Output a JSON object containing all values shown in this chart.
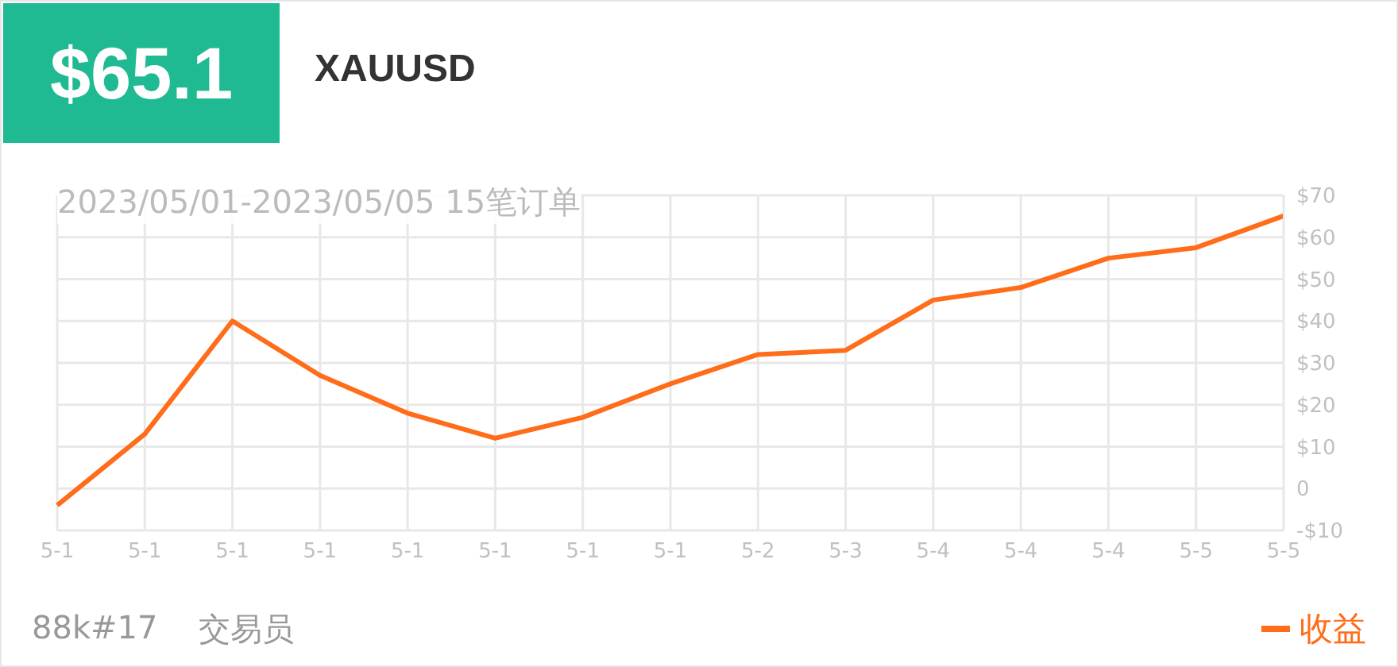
{
  "chart_data": {
    "type": "line",
    "title": "XAUUSD",
    "subtitle": "2023/05/01-2023/05/05 15笔订单",
    "annotations": [
      "$65.1",
      "88k#17",
      "交易员"
    ],
    "categories": [
      "5-1",
      "5-1",
      "5-1",
      "5-1",
      "5-1",
      "5-1",
      "5-1",
      "5-1",
      "5-2",
      "5-3",
      "5-4",
      "5-4",
      "5-4",
      "5-5",
      "5-5"
    ],
    "series": [
      {
        "name": "收益",
        "color": "#ff6d1a",
        "values": [
          -4,
          13,
          40,
          27,
          18,
          12,
          17,
          25,
          32,
          33,
          45,
          48,
          55,
          57.5,
          65.1
        ]
      }
    ],
    "ylim": [
      -10,
      70
    ],
    "yticks": [
      {
        "value": -10,
        "label": "-$10"
      },
      0,
      {
        "value": 10,
        "label": "$10"
      },
      {
        "value": 20,
        "label": "$20"
      },
      {
        "value": 30,
        "label": "$30"
      },
      {
        "value": 40,
        "label": "$40"
      },
      {
        "value": 50,
        "label": "$50"
      },
      {
        "value": 60,
        "label": "$60"
      },
      {
        "value": 70,
        "label": "$70"
      }
    ],
    "grid": true,
    "legend": "bottom right",
    "marker": "none",
    "line_style": "solid"
  }
}
